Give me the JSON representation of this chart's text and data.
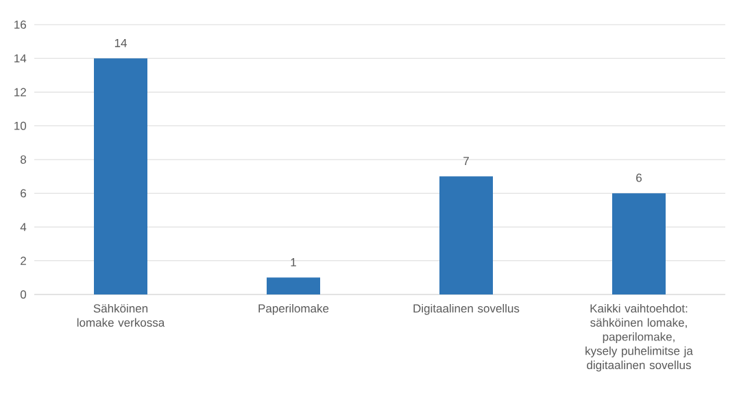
{
  "chart_data": {
    "type": "bar",
    "categories": [
      "Sähköinen lomake verkossa",
      "Paperilomake",
      "Digitaalinen sovellus",
      "Kaikki vaihtoehdot: sähköinen lomake, paperilomake, kysely puhelimitse ja digitaalinen sovellus"
    ],
    "values": [
      14,
      1,
      7,
      6
    ],
    "color": "#2e75b6",
    "ylim": [
      0,
      16
    ],
    "yticks": [
      0,
      2,
      4,
      6,
      8,
      10,
      12,
      14,
      16
    ],
    "grid": "y",
    "data_labels": true
  }
}
